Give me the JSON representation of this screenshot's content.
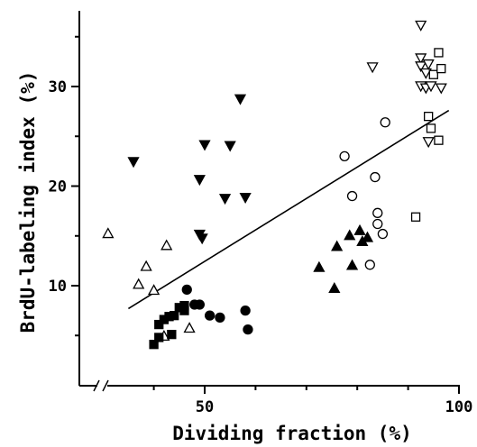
{
  "chart_data": {
    "type": "scatter",
    "xlabel": "Dividing fraction (%)",
    "ylabel": "BrdU-labeling index (%)",
    "xlim": [
      30,
      100
    ],
    "ylim": [
      0,
      37
    ],
    "x_ticks": [
      50,
      100
    ],
    "y_ticks": [
      10,
      20,
      30
    ],
    "axis_break": "x",
    "grid": false,
    "series": [
      {
        "marker": "triangle-down-filled",
        "points": [
          [
            36,
            22.5
          ],
          [
            49,
            20.7
          ],
          [
            50,
            24.2
          ],
          [
            49,
            15.2
          ],
          [
            49.5,
            14.8
          ],
          [
            54,
            18.8
          ],
          [
            55,
            24.1
          ],
          [
            57,
            28.8
          ],
          [
            58,
            18.9
          ]
        ]
      },
      {
        "marker": "triangle-up-open",
        "points": [
          [
            31,
            15.2
          ],
          [
            37,
            10.1
          ],
          [
            38.5,
            11.9
          ],
          [
            40,
            9.5
          ],
          [
            42.5,
            14.0
          ],
          [
            42,
            4.9
          ],
          [
            47,
            5.7
          ]
        ]
      },
      {
        "marker": "square-filled",
        "points": [
          [
            40,
            4.1
          ],
          [
            41,
            4.8
          ],
          [
            41,
            6.1
          ],
          [
            42,
            6.6
          ],
          [
            43,
            6.9
          ],
          [
            43.5,
            5.1
          ],
          [
            44,
            7.0
          ],
          [
            45,
            7.8
          ],
          [
            46,
            8.0
          ],
          [
            46,
            7.5
          ]
        ]
      },
      {
        "marker": "circle-filled",
        "points": [
          [
            46.5,
            9.6
          ],
          [
            48,
            8.1
          ],
          [
            49,
            8.1
          ],
          [
            51,
            7.0
          ],
          [
            53,
            6.8
          ],
          [
            58,
            7.5
          ],
          [
            58.5,
            5.6
          ]
        ]
      },
      {
        "marker": "triangle-up-filled",
        "points": [
          [
            72.5,
            11.8
          ],
          [
            75.5,
            9.7
          ],
          [
            76,
            13.9
          ],
          [
            78.5,
            15.0
          ],
          [
            79,
            12.0
          ],
          [
            80.5,
            15.5
          ],
          [
            81,
            14.4
          ],
          [
            82,
            14.8
          ]
        ]
      },
      {
        "marker": "circle-open",
        "points": [
          [
            77.5,
            23.0
          ],
          [
            79,
            19.0
          ],
          [
            82.5,
            12.1
          ],
          [
            83.5,
            20.9
          ],
          [
            84,
            16.2
          ],
          [
            84,
            17.3
          ],
          [
            85,
            15.2
          ],
          [
            85.5,
            26.4
          ]
        ]
      },
      {
        "marker": "triangle-down-open",
        "points": [
          [
            83,
            32.0
          ],
          [
            92.5,
            36.2
          ],
          [
            92.5,
            32.9
          ],
          [
            92.5,
            32.1
          ],
          [
            93.5,
            31.4
          ],
          [
            92.5,
            30.1
          ],
          [
            93.5,
            29.9
          ],
          [
            94.5,
            30.1
          ],
          [
            94,
            32.3
          ],
          [
            94,
            24.5
          ],
          [
            96.5,
            29.9
          ]
        ]
      },
      {
        "marker": "square-open",
        "points": [
          [
            91.5,
            16.9
          ],
          [
            94,
            27.0
          ],
          [
            94.5,
            25.8
          ],
          [
            95,
            31.2
          ],
          [
            96,
            33.4
          ],
          [
            96.5,
            31.8
          ],
          [
            96,
            24.6
          ]
        ]
      }
    ],
    "regression_line": {
      "x1": 35,
      "y1": 7.7,
      "x2": 98,
      "y2": 27.6
    }
  }
}
